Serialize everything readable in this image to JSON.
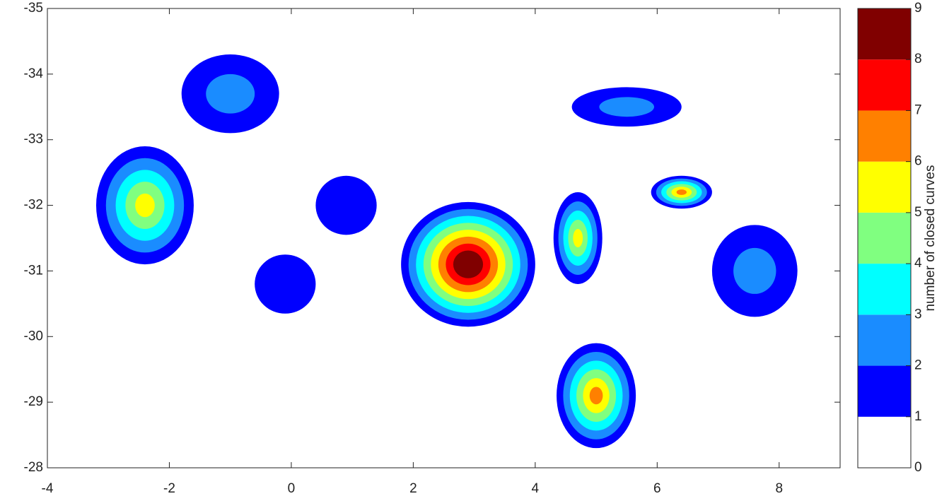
{
  "chart_data": {
    "type": "eddy-map",
    "xlim": [
      -4,
      9
    ],
    "xticks": [
      -4,
      -2,
      0,
      2,
      4,
      6,
      8
    ],
    "ylim": [
      -28,
      -35
    ],
    "yticks": [
      -35,
      -34,
      -33,
      -32,
      -31,
      -30,
      -29,
      -28
    ],
    "colorbar": {
      "label": "number of closed curves",
      "lim": [
        0,
        9
      ],
      "ticks": [
        0,
        1,
        2,
        3,
        4,
        5,
        6,
        7,
        8,
        9
      ],
      "colors": [
        "#ffffff",
        "#0000ff",
        "#1a8cff",
        "#00ffff",
        "#80ff80",
        "#ffff00",
        "#ff8000",
        "#ff0000",
        "#800000"
      ]
    },
    "eddies": {
      "x": [
        2.9,
        -2.4,
        5.0,
        4.7,
        6.4,
        -1.0,
        0.9,
        -0.1,
        7.6,
        5.5
      ],
      "y": [
        -31.1,
        -32.0,
        -29.1,
        -31.5,
        -32.2,
        -33.7,
        -32.0,
        -30.8,
        -31.0,
        -33.5
      ],
      "values": [
        9,
        5,
        6,
        5,
        6,
        2,
        1,
        1,
        2,
        2
      ],
      "rx": [
        1.1,
        0.8,
        0.65,
        0.4,
        0.5,
        0.8,
        0.5,
        0.5,
        0.7,
        0.9
      ],
      "ry": [
        0.95,
        0.9,
        0.8,
        0.7,
        0.25,
        0.6,
        0.45,
        0.45,
        0.7,
        0.3
      ]
    }
  }
}
